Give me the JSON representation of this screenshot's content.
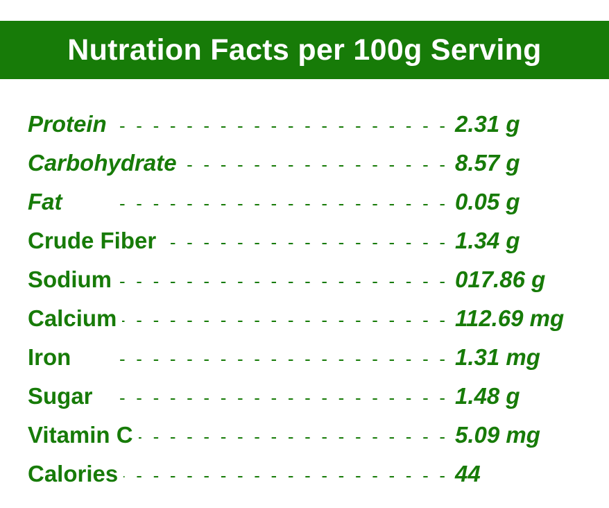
{
  "header": {
    "title": "Nutration Facts per 100g Serving",
    "background_color": "#177b08",
    "text_color": "#ffffff"
  },
  "accent_color": "#177b08",
  "rows": [
    {
      "label": "Protein",
      "value": "2.31 g"
    },
    {
      "label": "Carbohydrate",
      "value": "8.57 g"
    },
    {
      "label": "Fat",
      "value": "0.05 g"
    },
    {
      "label": "Crude Fiber",
      "value": "1.34 g"
    },
    {
      "label": "Sodium",
      "value": "017.86 g"
    },
    {
      "label": "Calcium",
      "value": "112.69 mg"
    },
    {
      "label": "Iron",
      "value": "1.31 mg"
    },
    {
      "label": "Sugar",
      "value": "1.48 g"
    },
    {
      "label": "Vitamin C",
      "value": "5.09 mg"
    },
    {
      "label": "Calories",
      "value": "44"
    }
  ]
}
